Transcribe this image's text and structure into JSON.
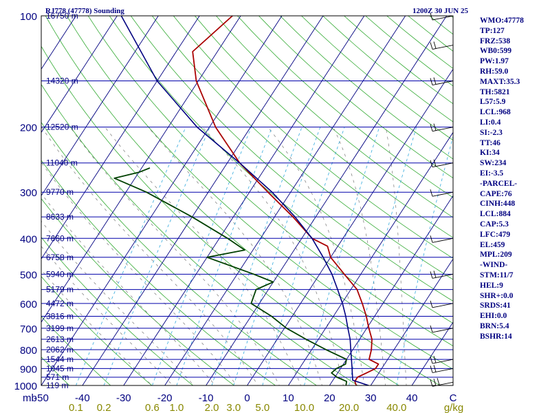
{
  "header": {
    "title": "RJ778 (47778) Sounding",
    "datetime": "1200Z 30 JUN 25"
  },
  "chart_data": {
    "type": "line",
    "title": "RJ778 (47778) Sounding",
    "pressure_levels": [
      100,
      200,
      300,
      400,
      500,
      600,
      700,
      800,
      900,
      1000
    ],
    "height_labels": [
      {
        "p": 100,
        "label": "16750 m"
      },
      {
        "p": 150,
        "label": "14320 m"
      },
      {
        "p": 200,
        "label": "12520 m"
      },
      {
        "p": 250,
        "label": "11040 m"
      },
      {
        "p": 300,
        "label": "9770 m"
      },
      {
        "p": 350,
        "label": "8633 m"
      },
      {
        "p": 400,
        "label": "7660 m"
      },
      {
        "p": 450,
        "label": "6758 m"
      },
      {
        "p": 500,
        "label": "5940 m"
      },
      {
        "p": 550,
        "label": "5179 m"
      },
      {
        "p": 600,
        "label": "4472 m"
      },
      {
        "p": 650,
        "label": "3816 m"
      },
      {
        "p": 700,
        "label": "3199 m"
      },
      {
        "p": 750,
        "label": "2613 m"
      },
      {
        "p": 800,
        "label": "2062 m"
      },
      {
        "p": 850,
        "label": "1544 m"
      },
      {
        "p": 900,
        "label": "1045 m"
      },
      {
        "p": 950,
        "label": "571 m"
      },
      {
        "p": 1000,
        "label": "119 m"
      }
    ],
    "pressure_unit": "mb",
    "temperature_ticks": [
      "-50",
      "-40",
      "-30",
      "-20",
      "-10",
      "0",
      "10",
      "20",
      "30",
      "40",
      "C"
    ],
    "mixing_ratio_ticks": [
      "0.1",
      "0.2",
      "0.6",
      "1.0",
      "2.0",
      "3.0",
      "5.0",
      "10.0",
      "20.0",
      "40.0",
      "g/kg"
    ],
    "mixing_ratio_values": [
      0.1,
      0.2,
      0.6,
      1.0,
      2.0,
      3.0,
      5.0,
      10.0,
      20.0,
      40.0
    ],
    "series": [
      {
        "role": "temperature",
        "color": "#aa0000",
        "points": [
          [
            1000,
            26.5
          ],
          [
            975,
            25.5
          ],
          [
            950,
            25.5
          ],
          [
            925,
            27.0
          ],
          [
            900,
            28.5
          ],
          [
            875,
            28.5
          ],
          [
            850,
            25.5
          ],
          [
            800,
            24.5
          ],
          [
            750,
            23.0
          ],
          [
            700,
            20.5
          ],
          [
            650,
            18.0
          ],
          [
            600,
            15.0
          ],
          [
            550,
            11.5
          ],
          [
            500,
            6.0
          ],
          [
            450,
            0.0
          ],
          [
            420,
            -2.5
          ],
          [
            400,
            -7.5
          ],
          [
            350,
            -15.5
          ],
          [
            300,
            -25.5
          ],
          [
            250,
            -37.0
          ],
          [
            200,
            -48.5
          ],
          [
            150,
            -60.5
          ],
          [
            125,
            -66.0
          ],
          [
            100,
            -62.0
          ],
          [
            95,
            -61.0
          ],
          [
            90,
            -59.5
          ]
        ]
      },
      {
        "role": "dewpoint",
        "color": "#004000",
        "points": [
          [
            1000,
            24.0
          ],
          [
            975,
            23.5
          ],
          [
            950,
            20.5
          ],
          [
            925,
            18.5
          ],
          [
            900,
            19.0
          ],
          [
            875,
            20.5
          ],
          [
            850,
            20.0
          ],
          [
            800,
            13.5
          ],
          [
            750,
            7.0
          ],
          [
            700,
            0.5
          ],
          [
            650,
            -5.0
          ],
          [
            600,
            -12.0
          ],
          [
            550,
            -13.0
          ],
          [
            525,
            -10.0
          ],
          [
            500,
            -16.0
          ],
          [
            450,
            -30.0
          ],
          [
            430,
            -22.0
          ],
          [
            400,
            -28.0
          ],
          [
            350,
            -40.0
          ],
          [
            300,
            -55.0
          ],
          [
            275,
            -65.0
          ],
          [
            265,
            -60.0
          ],
          [
            258,
            -58.0
          ]
        ]
      },
      {
        "role": "parcel",
        "color": "#000080",
        "points": [
          [
            1000,
            29.5
          ],
          [
            968,
            24.8
          ],
          [
            900,
            22.8
          ],
          [
            850,
            21.2
          ],
          [
            800,
            19.5
          ],
          [
            750,
            17.7
          ],
          [
            700,
            15.4
          ],
          [
            650,
            13.0
          ],
          [
            600,
            10.2
          ],
          [
            550,
            6.8
          ],
          [
            500,
            3.0
          ],
          [
            450,
            -1.8
          ],
          [
            400,
            -7.5
          ],
          [
            350,
            -15.0
          ],
          [
            300,
            -24.5
          ],
          [
            250,
            -37.0
          ],
          [
            200,
            -53.0
          ],
          [
            150,
            -70.0
          ],
          [
            100,
            -89.0
          ]
        ]
      }
    ],
    "wind_barbs_side": "right",
    "grid": true,
    "xlim": [
      -50,
      50
    ],
    "ylim": [
      1000,
      100
    ]
  },
  "indices": [
    "WMO:47778",
    "TP:127",
    "FRZ:538",
    "WB0:599",
    "PW:1.97",
    "RH:59.0",
    "MAXT:35.3",
    "TH:5821",
    "L57:5.9",
    "LCL:968",
    "LI:0.4",
    "SI:-2.3",
    "TT:46",
    "KI:34",
    "SW:234",
    "EI:-3.5",
    "-PARCEL-",
    "CAPE:76",
    "CINH:448",
    "LCL:884",
    "CAP:5.3",
    "LFC:479",
    "EL:459",
    "MPL:209",
    "-WIND-",
    "STM:11/7",
    "HEL:9",
    "SHR+:0.0",
    "SRDS:41",
    "EHI:0.0",
    "BRN:5.4",
    "BSHR:14"
  ],
  "colors": {
    "isobar": "#0000aa",
    "isotherm": "#000080",
    "dry_adiabat": "#33aa33",
    "moist_adiabat": "#777777",
    "mixing_ratio": "#33aadd",
    "label": "#000080",
    "mr_label": "#888800",
    "frame": "#000000"
  }
}
